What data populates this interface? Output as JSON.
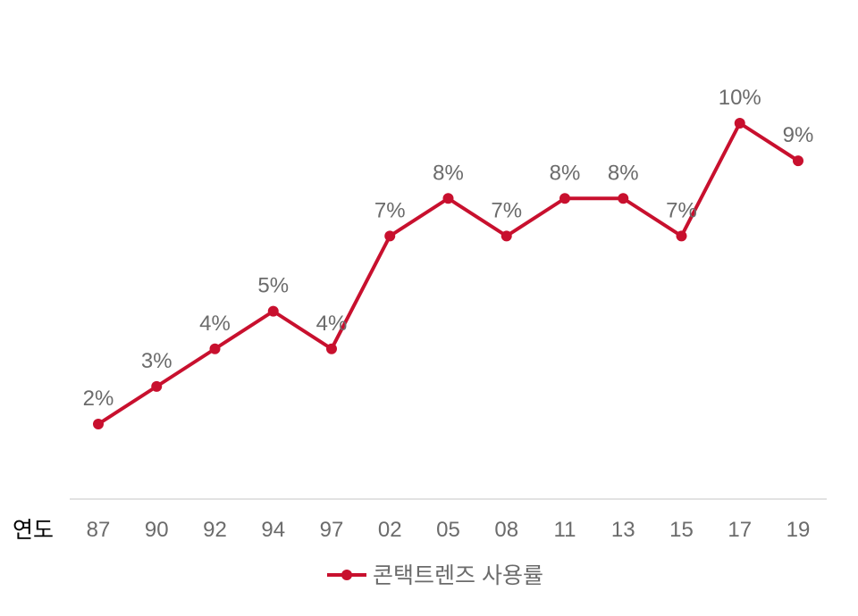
{
  "chart_data": {
    "type": "line",
    "xlabel": "연도",
    "categories": [
      "87",
      "90",
      "92",
      "94",
      "97",
      "02",
      "05",
      "08",
      "11",
      "13",
      "15",
      "17",
      "19"
    ],
    "series": [
      {
        "name": "콘택트렌즈 사용률",
        "values": [
          2,
          3,
          4,
          5,
          4,
          7,
          8,
          7,
          8,
          8,
          7,
          10,
          9
        ],
        "data_labels": [
          "2%",
          "3%",
          "4%",
          "5%",
          "4%",
          "7%",
          "8%",
          "7%",
          "8%",
          "8%",
          "7%",
          "10%",
          "9%"
        ],
        "color": "#c8102e"
      }
    ],
    "unit": "%",
    "grid": false,
    "legend": "bottom"
  }
}
